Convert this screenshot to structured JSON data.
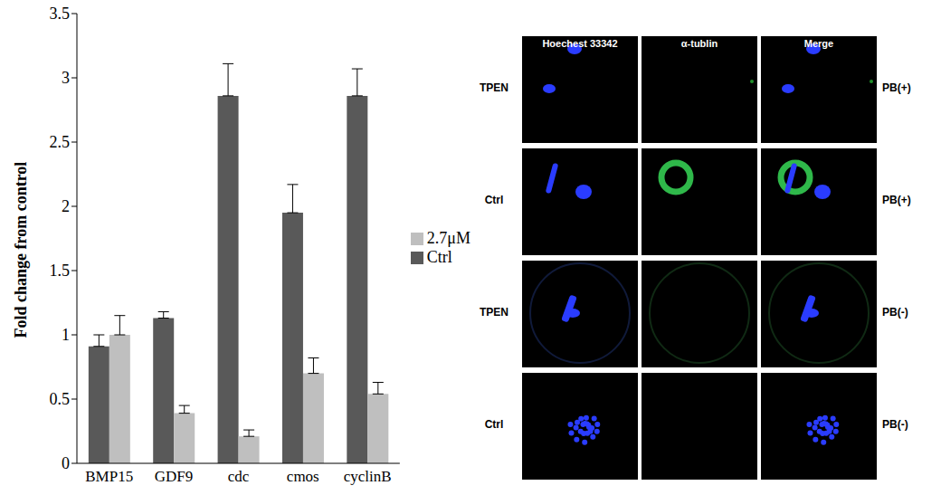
{
  "chart_data": {
    "type": "bar",
    "categories": [
      "BMP15",
      "GDF9",
      "cdc",
      "cmos",
      "cyclinB"
    ],
    "series": [
      {
        "name": "Ctrl",
        "color": "#595959",
        "values": [
          0.91,
          1.13,
          2.86,
          1.95,
          2.86
        ],
        "errors": [
          0.09,
          0.05,
          0.25,
          0.22,
          0.21
        ]
      },
      {
        "name": "2.7μM",
        "color": "#bfbfbf",
        "values": [
          1.0,
          0.39,
          0.21,
          0.7,
          0.54
        ],
        "errors": [
          0.15,
          0.06,
          0.05,
          0.12,
          0.09
        ]
      }
    ],
    "y_label": "Fold change from control",
    "ylim": [
      0,
      3.5
    ],
    "yticks": [
      0,
      0.5,
      1,
      1.5,
      2,
      2.5,
      3,
      3.5
    ],
    "grid": false,
    "legend": "right"
  },
  "image_panel": {
    "column_headers": [
      "Hoechest 33342",
      "α-tublin",
      "Merge"
    ],
    "rows": [
      {
        "label": "TPEN",
        "status": "PB(+)"
      },
      {
        "label": "Ctrl",
        "status": "PB(+)"
      },
      {
        "label": "TPEN",
        "status": "PB(-)"
      },
      {
        "label": "Ctrl",
        "status": "PB(-)"
      }
    ]
  }
}
